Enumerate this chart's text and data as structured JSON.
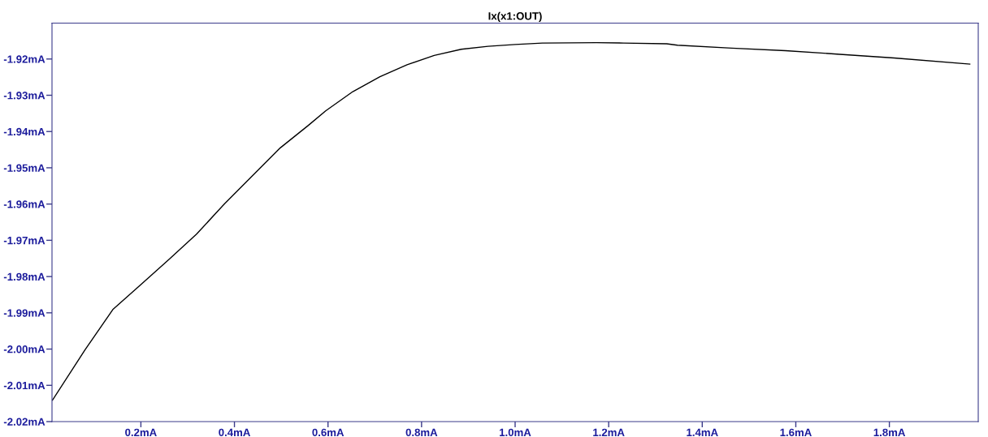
{
  "chart_data": {
    "type": "line",
    "title": "Ix(x1:OUT)",
    "x": [
      0.011,
      0.0807,
      0.14,
      0.2,
      0.26,
      0.319,
      0.379,
      0.4385,
      0.498,
      0.558,
      0.595,
      0.653,
      0.711,
      0.769,
      0.827,
      0.885,
      0.942,
      1.0,
      1.058,
      1.174,
      1.232,
      1.324,
      1.347,
      1.463,
      1.578,
      1.694,
      1.81,
      1.972
    ],
    "series": [
      {
        "color": "#000000",
        "values": [
          -2.0141,
          -2.0002,
          -1.9891,
          -1.9822,
          -1.9753,
          -1.9683,
          -1.9599,
          -1.9522,
          -1.9445,
          -1.9383,
          -1.9343,
          -1.929,
          -1.9249,
          -1.9216,
          -1.919,
          -1.9173,
          -1.9165,
          -1.916,
          -1.9156,
          -1.9155,
          -1.9156,
          -1.9158,
          -1.9162,
          -1.917,
          -1.9177,
          -1.9187,
          -1.9197,
          -1.9214
        ]
      }
    ],
    "xlim": [
      0.01,
      1.99
    ],
    "ylim": [
      -2.02,
      -1.9101
    ],
    "xticks": [
      {
        "value": 0.2,
        "label": "0.2mA"
      },
      {
        "value": 0.4,
        "label": "0.4mA"
      },
      {
        "value": 0.6,
        "label": "0.6mA"
      },
      {
        "value": 0.8,
        "label": "0.8mA"
      },
      {
        "value": 1.0,
        "label": "1.0mA"
      },
      {
        "value": 1.2,
        "label": "1.2mA"
      },
      {
        "value": 1.4,
        "label": "1.4mA"
      },
      {
        "value": 1.6,
        "label": "1.6mA"
      },
      {
        "value": 1.8,
        "label": "1.8mA"
      }
    ],
    "yticks": [
      {
        "value": -2.02,
        "label": "-2.02mA"
      },
      {
        "value": -2.01,
        "label": "-2.01mA"
      },
      {
        "value": -2.0,
        "label": "-2.00mA"
      },
      {
        "value": -1.99,
        "label": "-1.99mA"
      },
      {
        "value": -1.98,
        "label": "-1.98mA"
      },
      {
        "value": -1.97,
        "label": "-1.97mA"
      },
      {
        "value": -1.96,
        "label": "-1.96mA"
      },
      {
        "value": -1.95,
        "label": "-1.95mA"
      },
      {
        "value": -1.94,
        "label": "-1.94mA"
      },
      {
        "value": -1.93,
        "label": "-1.93mA"
      },
      {
        "value": -1.92,
        "label": "-1.92mA"
      }
    ],
    "grid": false,
    "marker": "none",
    "line_style": "solid"
  }
}
